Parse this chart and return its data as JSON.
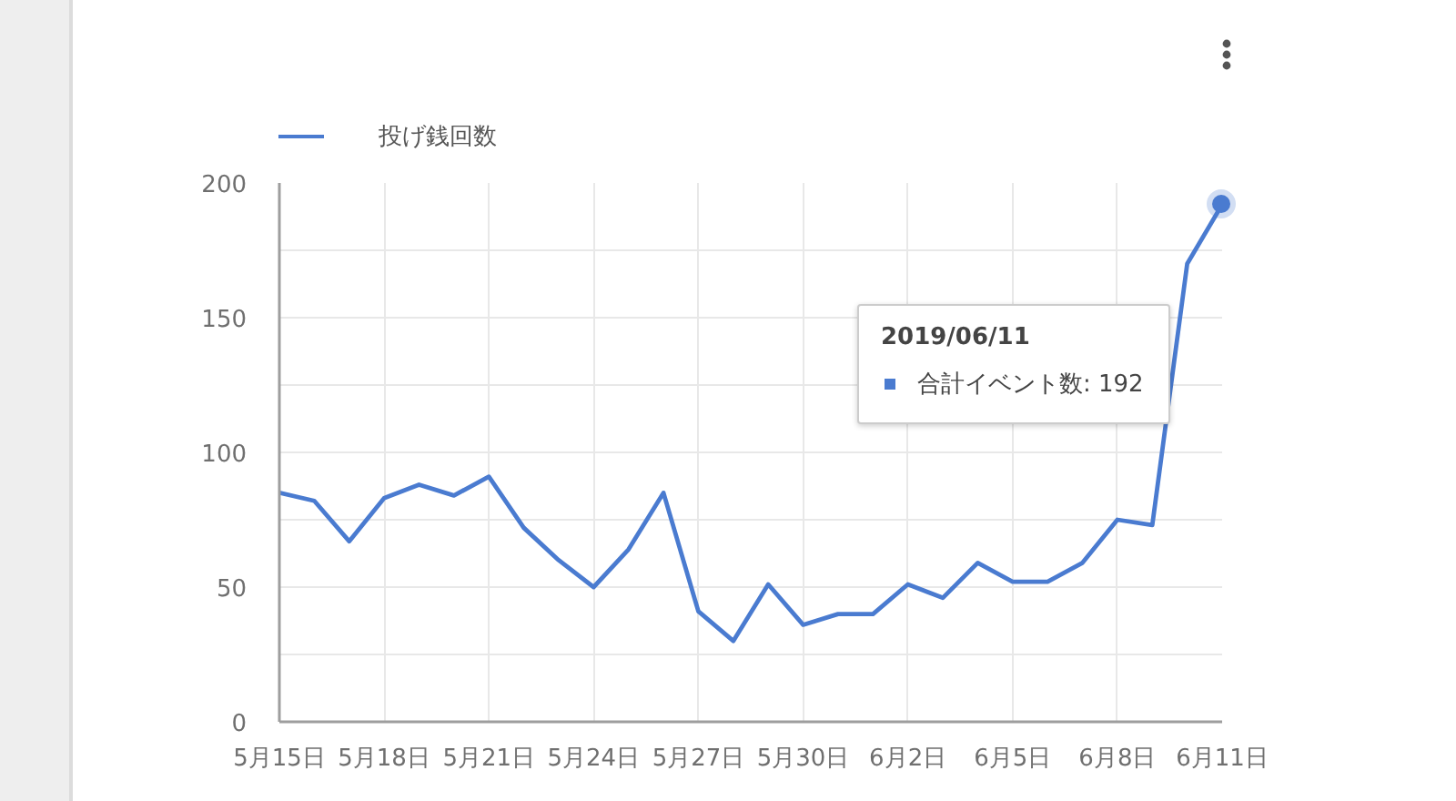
{
  "chart_data": {
    "type": "line",
    "x": [
      "2019-05-15",
      "2019-05-16",
      "2019-05-17",
      "2019-05-18",
      "2019-05-19",
      "2019-05-20",
      "2019-05-21",
      "2019-05-22",
      "2019-05-23",
      "2019-05-24",
      "2019-05-25",
      "2019-05-26",
      "2019-05-27",
      "2019-05-28",
      "2019-05-29",
      "2019-05-30",
      "2019-05-31",
      "2019-06-01",
      "2019-06-02",
      "2019-06-03",
      "2019-06-04",
      "2019-06-05",
      "2019-06-06",
      "2019-06-07",
      "2019-06-08",
      "2019-06-09",
      "2019-06-10",
      "2019-06-11"
    ],
    "series": [
      {
        "name": "投げ銭回数",
        "color": "#4a7bd0",
        "values": [
          85,
          82,
          67,
          83,
          88,
          84,
          91,
          72,
          60,
          50,
          64,
          85,
          41,
          30,
          51,
          36,
          40,
          40,
          51,
          46,
          59,
          52,
          52,
          59,
          75,
          73,
          170,
          192
        ]
      }
    ],
    "xlim": [
      "2019-05-15",
      "2019-06-11"
    ],
    "xticks": [
      {
        "value": "2019-05-15",
        "label": "5月15日"
      },
      {
        "value": "2019-05-18",
        "label": "5月18日"
      },
      {
        "value": "2019-05-21",
        "label": "5月21日"
      },
      {
        "value": "2019-05-24",
        "label": "5月24日"
      },
      {
        "value": "2019-05-27",
        "label": "5月27日"
      },
      {
        "value": "2019-05-30",
        "label": "5月30日"
      },
      {
        "value": "2019-06-02",
        "label": "6月2日"
      },
      {
        "value": "2019-06-05",
        "label": "6月5日"
      },
      {
        "value": "2019-06-08",
        "label": "6月8日"
      },
      {
        "value": "2019-06-11",
        "label": "6月11日"
      }
    ],
    "ylim": [
      0,
      200
    ],
    "yticks": [
      0,
      {
        "value": 25,
        "label": null
      },
      50,
      {
        "value": 75,
        "label": null
      },
      100,
      {
        "value": 125,
        "label": null
      },
      150,
      {
        "value": 175,
        "label": null
      },
      200
    ],
    "grid": true,
    "legend": "top left",
    "annotations": [
      "2019/06/11",
      "合計イベント数: 192"
    ]
  }
}
